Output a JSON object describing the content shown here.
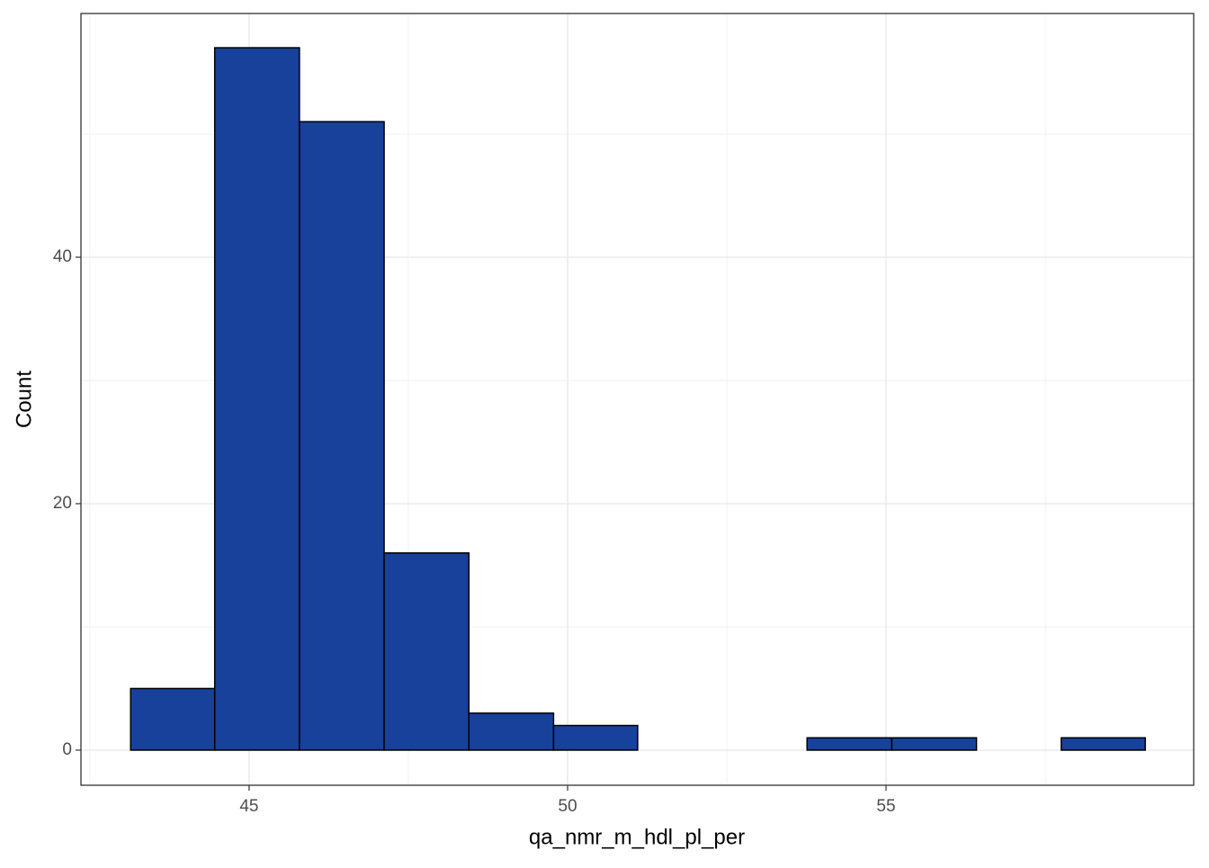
{
  "chart_data": {
    "type": "histogram",
    "x_label": "qa_nmr_m_hdl_pl_per",
    "y_label": "Count",
    "bins": [
      43.14,
      44.46,
      45.79,
      47.12,
      48.45,
      49.78,
      51.1,
      52.43,
      53.76,
      55.09,
      56.42,
      57.75,
      59.07
    ],
    "values": [
      5,
      57,
      51,
      16,
      3,
      2,
      0,
      0,
      1,
      1,
      0,
      1
    ],
    "color": "#17419a",
    "xlim": [
      42.36,
      59.83
    ],
    "ylim": [
      -2.85,
      59.78
    ],
    "xticks": [
      45,
      50,
      55
    ],
    "yticks": [
      0,
      20,
      40
    ],
    "minor_xticks": [
      42.5,
      47.5,
      52.5,
      57.5
    ],
    "minor_yticks": [
      10,
      30,
      50
    ],
    "grid": true
  }
}
